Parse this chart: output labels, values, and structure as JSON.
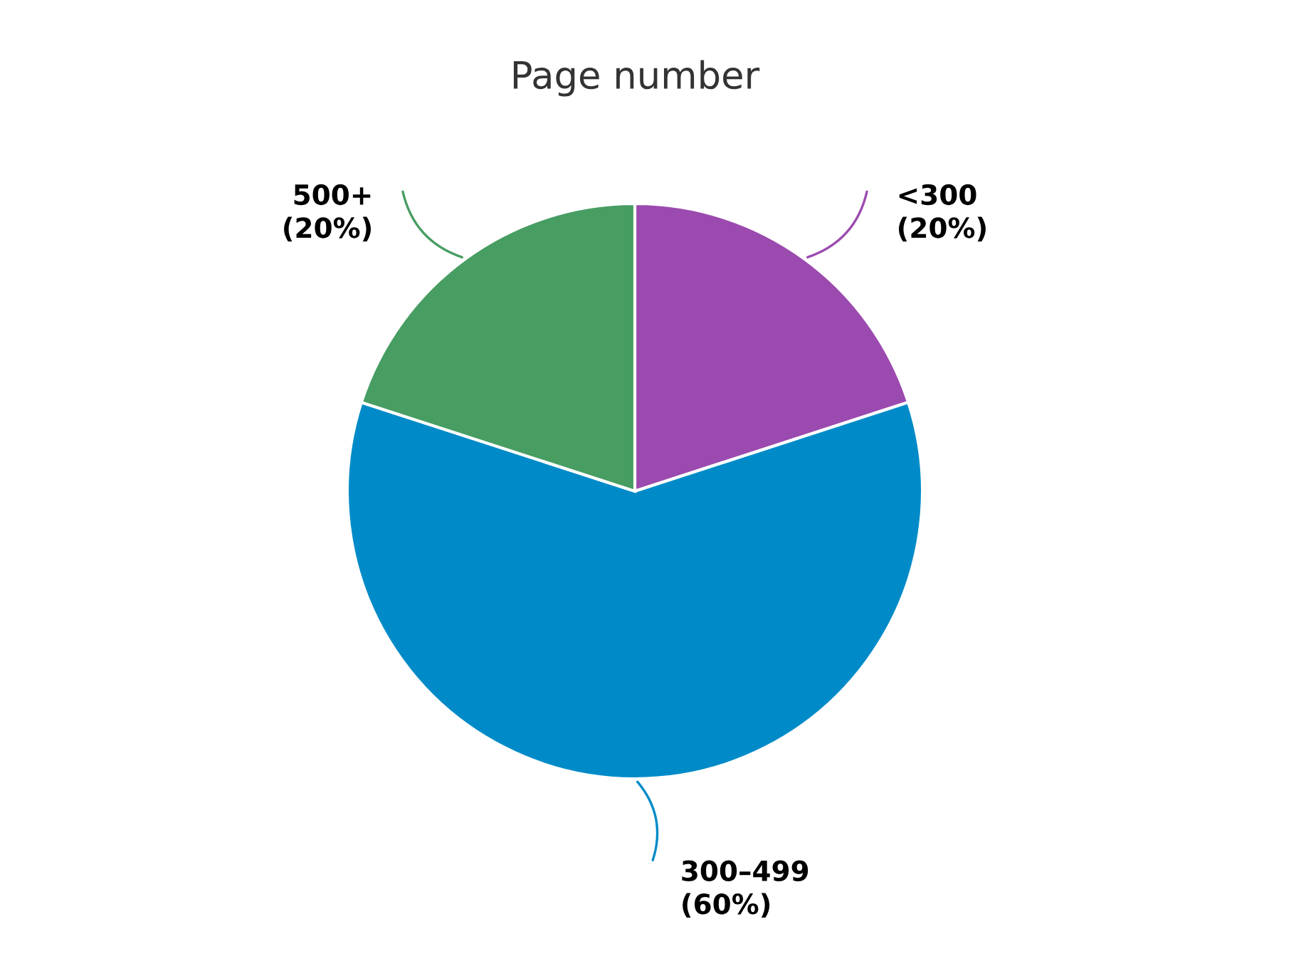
{
  "chart_data": {
    "type": "pie",
    "title": "Page number",
    "categories": [
      "<300",
      "300–499",
      "500+"
    ],
    "values": [
      20,
      60,
      20
    ],
    "value_labels": [
      "(20%)",
      "(60%)",
      "(20%)"
    ],
    "colors": [
      "#9b4aaf",
      "#008bc8",
      "#479d62"
    ]
  }
}
